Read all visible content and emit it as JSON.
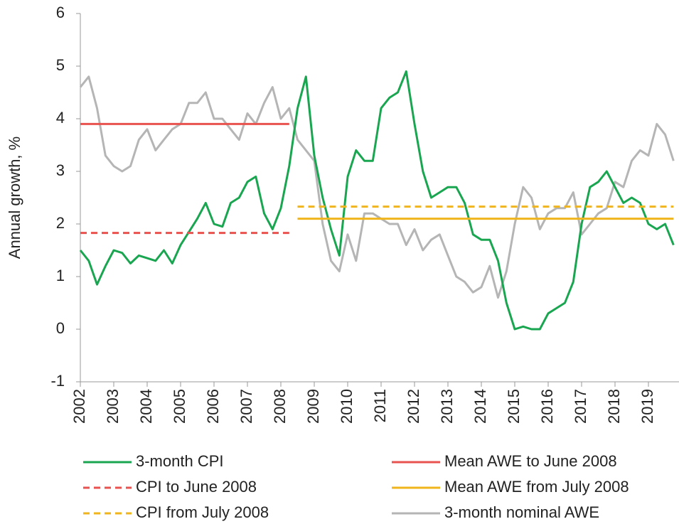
{
  "chart_data": {
    "type": "line",
    "y_label": "Annual growth, %",
    "categories": [
      "2002",
      null,
      null,
      null,
      "2003",
      null,
      null,
      null,
      "2004",
      null,
      null,
      null,
      "2005",
      null,
      null,
      null,
      "2006",
      null,
      null,
      null,
      "2007",
      null,
      null,
      null,
      "2008",
      null,
      null,
      null,
      "2009",
      null,
      null,
      null,
      "2010",
      null,
      null,
      null,
      "2011",
      null,
      null,
      null,
      "2012",
      null,
      null,
      null,
      "2013",
      null,
      null,
      null,
      "2014",
      null,
      null,
      null,
      "2015",
      null,
      null,
      null,
      "2016",
      null,
      null,
      null,
      "2017",
      null,
      null,
      null,
      "2018",
      null,
      null,
      null,
      "2019",
      null,
      null,
      null
    ],
    "ylim": [
      -1,
      6
    ],
    "yticks": [
      -1,
      0,
      1,
      2,
      3,
      4,
      5,
      6
    ],
    "grid": false,
    "series": [
      {
        "name": "3-month CPI",
        "color": "#1aa651",
        "dash": false,
        "values": [
          1.5,
          1.3,
          0.85,
          1.2,
          1.5,
          1.45,
          1.25,
          1.4,
          1.35,
          1.3,
          1.5,
          1.25,
          1.6,
          1.85,
          2.1,
          2.4,
          2.0,
          1.95,
          2.4,
          2.5,
          2.8,
          2.9,
          2.2,
          1.9,
          2.3,
          3.1,
          4.2,
          4.8,
          3.3,
          2.5,
          1.9,
          1.4,
          2.9,
          3.4,
          3.2,
          3.2,
          4.2,
          4.4,
          4.5,
          4.9,
          3.9,
          3.0,
          2.5,
          2.6,
          2.7,
          2.7,
          2.4,
          1.8,
          1.7,
          1.7,
          1.3,
          0.5,
          0.0,
          0.05,
          0.0,
          0.0,
          0.3,
          0.4,
          0.5,
          0.9,
          2.0,
          2.7,
          2.8,
          3.0,
          2.7,
          2.4,
          2.5,
          2.4,
          2.0,
          1.9,
          2.0,
          1.6
        ]
      },
      {
        "name": "CPI to June 2008",
        "color": "#e8524f",
        "dash": true,
        "values": [
          1.83,
          1.83,
          1.83,
          1.83,
          1.83,
          1.83,
          1.83,
          1.83,
          1.83,
          1.83,
          1.83,
          1.83,
          1.83,
          1.83,
          1.83,
          1.83,
          1.83,
          1.83,
          1.83,
          1.83,
          1.83,
          1.83,
          1.83,
          1.83,
          1.83,
          1.83,
          null,
          null,
          null,
          null,
          null,
          null,
          null,
          null,
          null,
          null,
          null,
          null,
          null,
          null,
          null,
          null,
          null,
          null,
          null,
          null,
          null,
          null,
          null,
          null,
          null,
          null,
          null,
          null,
          null,
          null,
          null,
          null,
          null,
          null,
          null,
          null,
          null,
          null,
          null,
          null,
          null,
          null,
          null,
          null,
          null,
          null
        ]
      },
      {
        "name": "CPI from July 2008",
        "color": "#f0b41c",
        "dash": true,
        "values": [
          null,
          null,
          null,
          null,
          null,
          null,
          null,
          null,
          null,
          null,
          null,
          null,
          null,
          null,
          null,
          null,
          null,
          null,
          null,
          null,
          null,
          null,
          null,
          null,
          null,
          null,
          2.33,
          2.33,
          2.33,
          2.33,
          2.33,
          2.33,
          2.33,
          2.33,
          2.33,
          2.33,
          2.33,
          2.33,
          2.33,
          2.33,
          2.33,
          2.33,
          2.33,
          2.33,
          2.33,
          2.33,
          2.33,
          2.33,
          2.33,
          2.33,
          2.33,
          2.33,
          2.33,
          2.33,
          2.33,
          2.33,
          2.33,
          2.33,
          2.33,
          2.33,
          2.33,
          2.33,
          2.33,
          2.33,
          2.33,
          2.33,
          2.33,
          2.33,
          2.33,
          2.33,
          2.33,
          2.33
        ]
      },
      {
        "name": "Mean AWE to June 2008",
        "color": "#e8524f",
        "dash": false,
        "values": [
          3.9,
          3.9,
          3.9,
          3.9,
          3.9,
          3.9,
          3.9,
          3.9,
          3.9,
          3.9,
          3.9,
          3.9,
          3.9,
          3.9,
          3.9,
          3.9,
          3.9,
          3.9,
          3.9,
          3.9,
          3.9,
          3.9,
          3.9,
          3.9,
          3.9,
          3.9,
          null,
          null,
          null,
          null,
          null,
          null,
          null,
          null,
          null,
          null,
          null,
          null,
          null,
          null,
          null,
          null,
          null,
          null,
          null,
          null,
          null,
          null,
          null,
          null,
          null,
          null,
          null,
          null,
          null,
          null,
          null,
          null,
          null,
          null,
          null,
          null,
          null,
          null,
          null,
          null,
          null,
          null,
          null,
          null,
          null,
          null
        ]
      },
      {
        "name": "Mean AWE from July 2008",
        "color": "#f0b41c",
        "dash": false,
        "values": [
          null,
          null,
          null,
          null,
          null,
          null,
          null,
          null,
          null,
          null,
          null,
          null,
          null,
          null,
          null,
          null,
          null,
          null,
          null,
          null,
          null,
          null,
          null,
          null,
          null,
          null,
          2.1,
          2.1,
          2.1,
          2.1,
          2.1,
          2.1,
          2.1,
          2.1,
          2.1,
          2.1,
          2.1,
          2.1,
          2.1,
          2.1,
          2.1,
          2.1,
          2.1,
          2.1,
          2.1,
          2.1,
          2.1,
          2.1,
          2.1,
          2.1,
          2.1,
          2.1,
          2.1,
          2.1,
          2.1,
          2.1,
          2.1,
          2.1,
          2.1,
          2.1,
          2.1,
          2.1,
          2.1,
          2.1,
          2.1,
          2.1,
          2.1,
          2.1,
          2.1,
          2.1,
          2.1,
          2.1
        ]
      },
      {
        "name": "3-month nominal AWE",
        "color": "#b5b5b5",
        "dash": false,
        "values": [
          4.6,
          4.8,
          4.2,
          3.3,
          3.1,
          3.0,
          3.1,
          3.6,
          3.8,
          3.4,
          3.6,
          3.8,
          3.9,
          4.3,
          4.3,
          4.5,
          4.0,
          4.0,
          3.8,
          3.6,
          4.1,
          3.9,
          4.3,
          4.6,
          4.0,
          4.2,
          3.6,
          3.4,
          3.2,
          2.0,
          1.3,
          1.1,
          1.8,
          1.3,
          2.2,
          2.2,
          2.1,
          2.0,
          2.0,
          1.6,
          1.9,
          1.5,
          1.7,
          1.8,
          1.4,
          1.0,
          0.9,
          0.7,
          0.8,
          1.2,
          0.6,
          1.1,
          2.0,
          2.7,
          2.5,
          1.9,
          2.2,
          2.3,
          2.3,
          2.6,
          1.8,
          2.0,
          2.2,
          2.3,
          2.8,
          2.7,
          3.2,
          3.4,
          3.3,
          3.9,
          3.7,
          3.2
        ]
      }
    ]
  }
}
